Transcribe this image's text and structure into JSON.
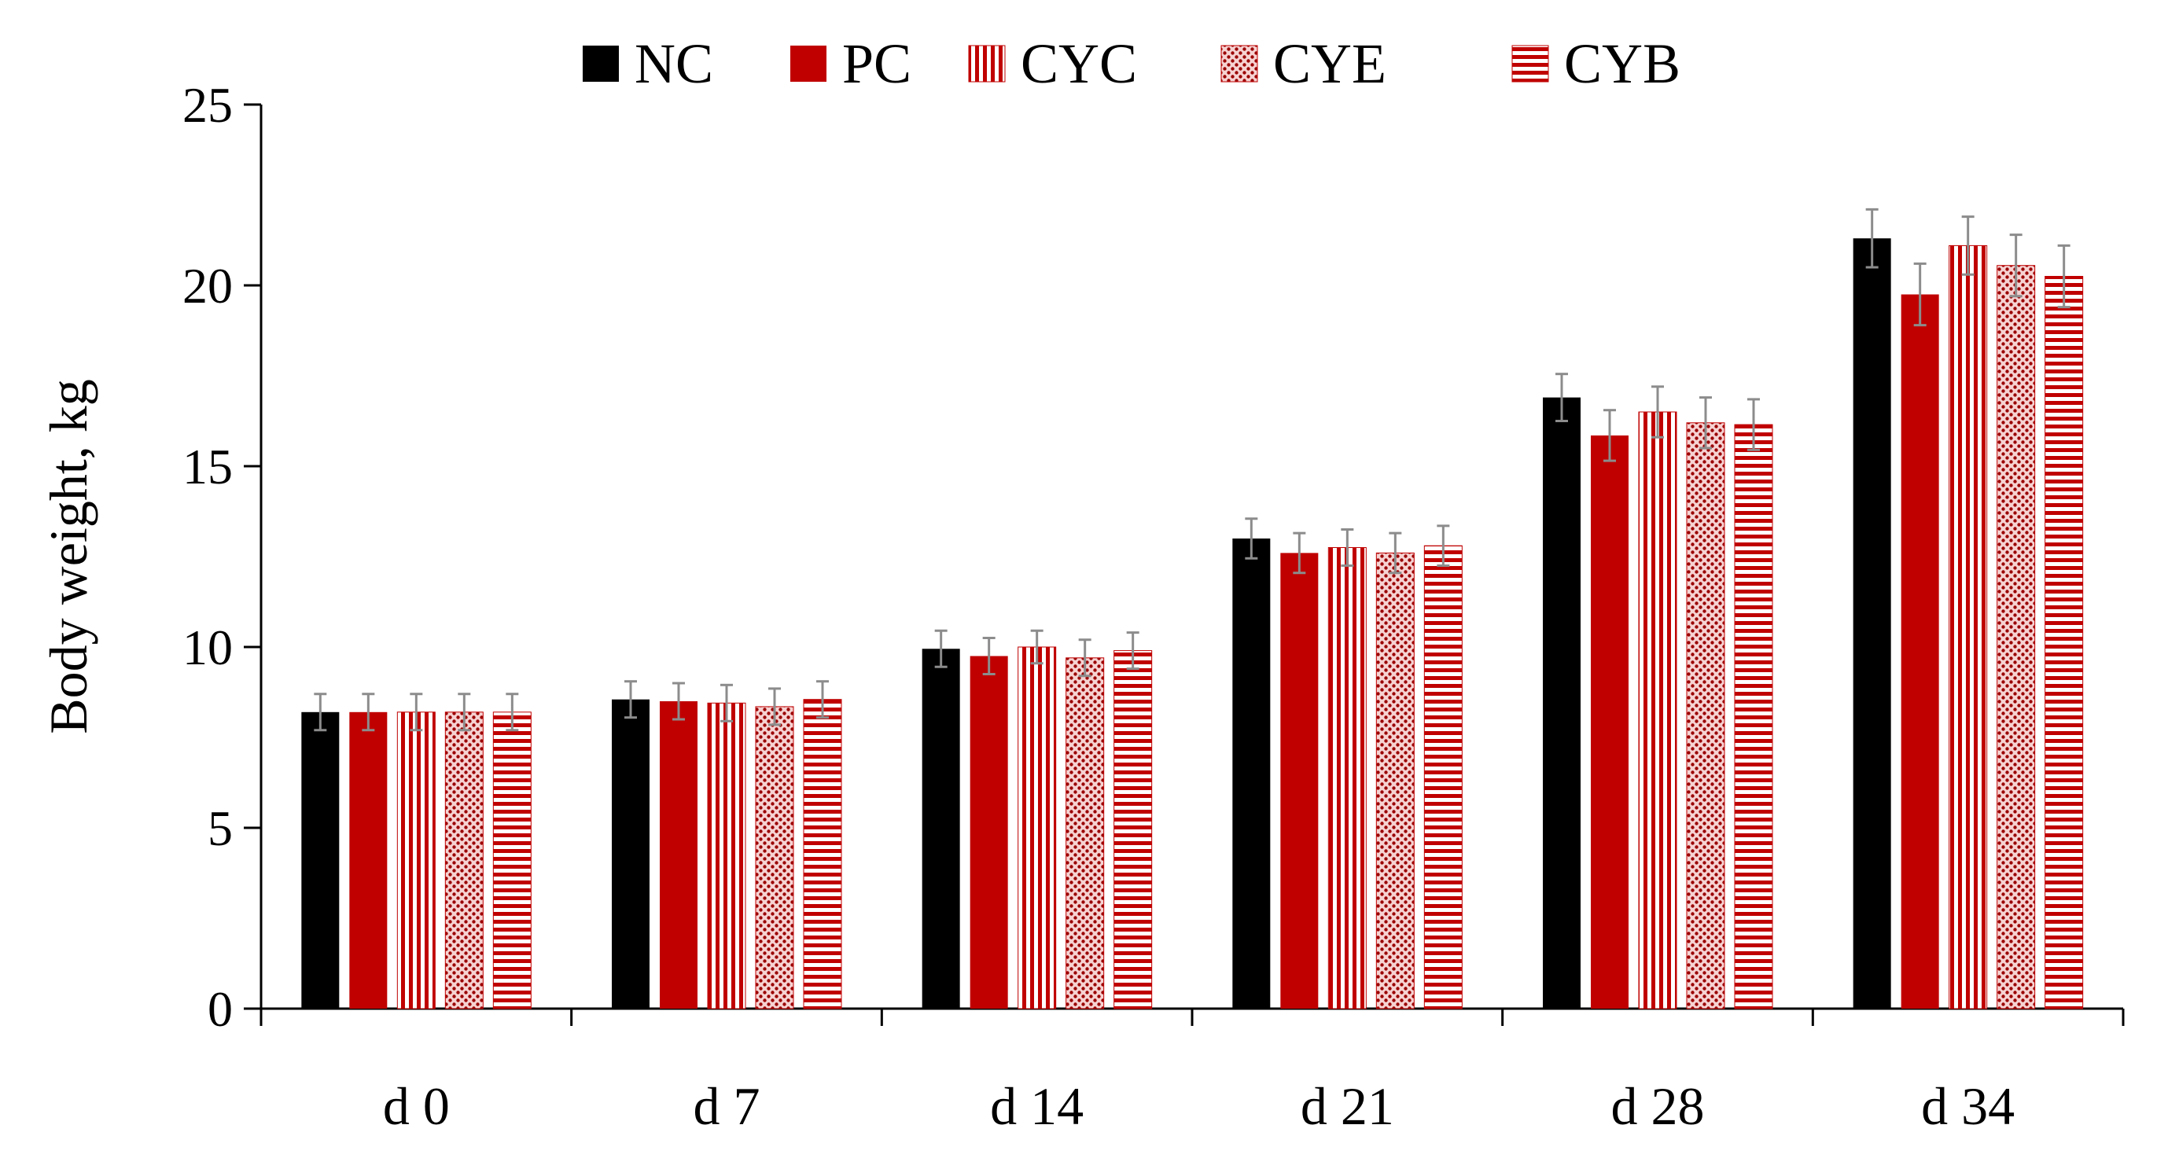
{
  "chart_data": {
    "type": "bar",
    "title": "",
    "xlabel": "",
    "ylabel": "Body weight, kg",
    "ylim": [
      0,
      25
    ],
    "yticks": [
      0,
      5,
      10,
      15,
      20,
      25
    ],
    "grid": false,
    "legend_position": "top-center",
    "categories": [
      "d 0",
      "d 7",
      "d 14",
      "d 21",
      "d 28",
      "d 34"
    ],
    "series": [
      {
        "name": "NC",
        "color": "#000000",
        "pattern": "solid",
        "values": [
          8.2,
          8.55,
          9.95,
          13.0,
          16.9,
          21.3
        ],
        "errors": [
          0.5,
          0.5,
          0.5,
          0.55,
          0.65,
          0.8
        ]
      },
      {
        "name": "PC",
        "color": "#c00000",
        "pattern": "solid",
        "values": [
          8.2,
          8.5,
          9.75,
          12.6,
          15.85,
          19.75
        ],
        "errors": [
          0.5,
          0.5,
          0.5,
          0.55,
          0.7,
          0.85
        ]
      },
      {
        "name": "CYC",
        "color": "#c00000",
        "pattern": "vertical-stripes",
        "values": [
          8.2,
          8.45,
          10.0,
          12.75,
          16.5,
          21.1
        ],
        "errors": [
          0.5,
          0.5,
          0.45,
          0.5,
          0.7,
          0.8
        ]
      },
      {
        "name": "CYE",
        "color": "#c00000",
        "pattern": "dots",
        "values": [
          8.2,
          8.35,
          9.7,
          12.6,
          16.2,
          20.55
        ],
        "errors": [
          0.5,
          0.5,
          0.5,
          0.55,
          0.7,
          0.85
        ]
      },
      {
        "name": "CYB",
        "color": "#c00000",
        "pattern": "horizontal-stripes",
        "values": [
          8.2,
          8.55,
          9.9,
          12.8,
          16.15,
          20.25
        ],
        "errors": [
          0.5,
          0.5,
          0.5,
          0.55,
          0.7,
          0.85
        ]
      }
    ]
  }
}
